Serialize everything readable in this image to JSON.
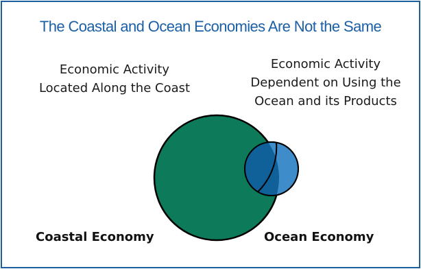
{
  "title": "The Coastal and Ocean Economies Are Not the Same",
  "left_description": [
    "Economic Activity",
    "Located Along the Coast"
  ],
  "right_description": [
    "Economic Activity",
    "Dependent on Using the",
    "Ocean and its Products"
  ],
  "labels": {
    "coastal": "Coastal Economy",
    "ocean": "Ocean Economy"
  },
  "colors": {
    "frame": "#1c5f9c",
    "title": "#1b5fa6",
    "coastal_circle": "#0d7b5a",
    "ocean_circle": "#3f8ccb",
    "overlap": "#10609a"
  }
}
